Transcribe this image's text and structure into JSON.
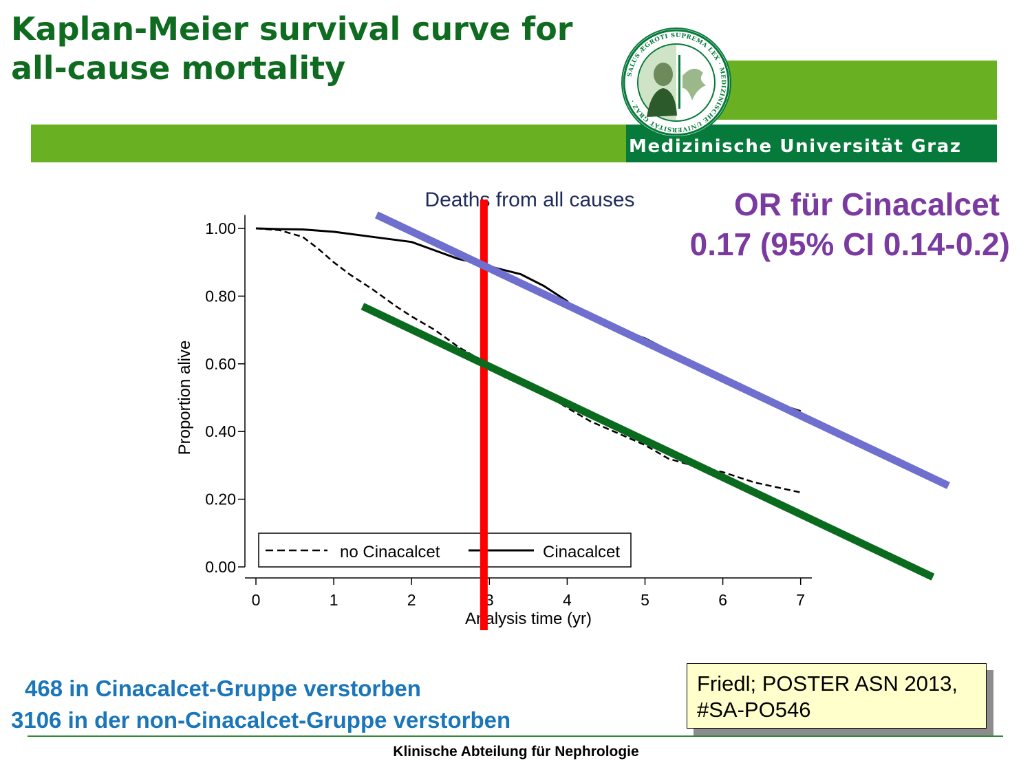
{
  "slide": {
    "title_line1": "Kaplan-Meier survival curve for",
    "title_line2": "all-cause mortality",
    "university": "Medizinische Universität Graz",
    "seal_text": "SALUS ÆGROTI SUPREMA LEX · MEDIZINISCHE UNIVERSITÄT GRAZ",
    "or_line1": "OR für Cinacalcet",
    "or_line2": "0.17 (95% CI 0.14-0.2)",
    "count_line1": "468 in Cinacalcet-Gruppe verstorben",
    "count_line2": "3106 in der non-Cinacalcet-Gruppe verstorben",
    "citation_line1": "Friedl; POSTER ASN 2013,",
    "citation_line2": "#SA-PO546",
    "footer": "Klinische Abteilung für Nephrologie",
    "colors": {
      "title_green": "#0f6b1f",
      "bar_green": "#6ab023",
      "bar_dark_green": "#067a3a",
      "or_purple": "#7a3aa0",
      "counts_blue": "#1a76b8",
      "citation_bg": "#ffffcc",
      "marker_red": "#ff0000",
      "trend_blue": "#6f6fcf",
      "trend_green": "#0a6a1e"
    }
  },
  "chart_data": {
    "type": "line",
    "title": "Deaths from all causes",
    "xlabel": "Analysis time (yr)",
    "ylabel": "Proportion alive",
    "xlim": [
      0,
      7
    ],
    "ylim": [
      0,
      1
    ],
    "x_ticks": [
      "0",
      "1",
      "2",
      "3",
      "4",
      "5",
      "6",
      "7"
    ],
    "y_ticks": [
      "0.00",
      "0.20",
      "0.40",
      "0.60",
      "0.80",
      "1.00"
    ],
    "legend_position": "bottom",
    "series": [
      {
        "name": "no Cinacalcet",
        "style": "dashed",
        "x": [
          0,
          0.3,
          0.6,
          0.8,
          1.0,
          1.2,
          1.5,
          1.8,
          2.0,
          2.3,
          2.6,
          2.9,
          3.2,
          3.5,
          3.8,
          4.0,
          4.3,
          4.6,
          5.0,
          5.3,
          5.6,
          6.0,
          6.4,
          6.7,
          7.0
        ],
        "y": [
          1.0,
          0.995,
          0.975,
          0.94,
          0.9,
          0.865,
          0.82,
          0.77,
          0.74,
          0.7,
          0.65,
          0.61,
          0.56,
          0.53,
          0.5,
          0.47,
          0.43,
          0.4,
          0.36,
          0.32,
          0.3,
          0.28,
          0.25,
          0.235,
          0.22
        ]
      },
      {
        "name": "Cinacalcet",
        "style": "solid",
        "x": [
          0,
          0.3,
          0.6,
          1.0,
          1.5,
          2.0,
          2.3,
          2.6,
          2.9,
          3.1,
          3.4,
          3.7,
          4.0,
          4.1,
          4.3,
          4.6,
          5.0,
          5.3,
          5.6,
          6.0,
          6.3,
          6.6,
          7.0
        ],
        "y": [
          1.0,
          0.998,
          0.997,
          0.99,
          0.975,
          0.96,
          0.935,
          0.91,
          0.895,
          0.882,
          0.865,
          0.83,
          0.785,
          0.755,
          0.745,
          0.71,
          0.675,
          0.64,
          0.6,
          0.56,
          0.52,
          0.49,
          0.46
        ]
      }
    ],
    "annotations": [
      {
        "kind": "vertical-line",
        "color": "red",
        "x": 2.93
      },
      {
        "kind": "trend-line",
        "color": "blue",
        "from": [
          1.55,
          1.04
        ],
        "to": [
          8.9,
          0.24
        ]
      },
      {
        "kind": "trend-line",
        "color": "green",
        "from": [
          1.37,
          0.77
        ],
        "to": [
          8.7,
          -0.03
        ]
      }
    ]
  }
}
